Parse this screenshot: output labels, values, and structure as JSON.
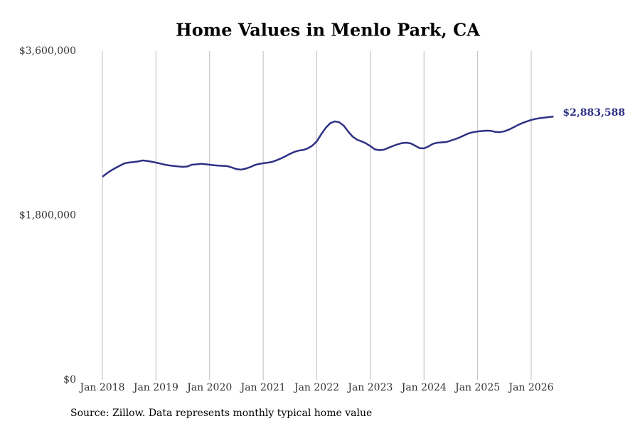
{
  "chart_data": {
    "type": "line",
    "title": "Home Values in Menlo Park, CA",
    "source": "Source: Zillow. Data represents monthly typical home value",
    "categories": [
      "Jan 2018",
      null,
      null,
      null,
      null,
      null,
      null,
      null,
      null,
      null,
      null,
      null,
      "Jan 2019",
      null,
      null,
      null,
      null,
      null,
      null,
      null,
      null,
      null,
      null,
      null,
      "Jan 2020",
      null,
      null,
      null,
      null,
      null,
      null,
      null,
      null,
      null,
      null,
      null,
      "Jan 2021",
      null,
      null,
      null,
      null,
      null,
      null,
      null,
      null,
      null,
      null,
      null,
      "Jan 2022",
      null,
      null,
      null,
      null,
      null,
      null,
      null,
      null,
      null,
      null,
      null,
      "Jan 2023",
      null,
      null,
      null,
      null,
      null,
      null,
      null,
      null,
      null,
      null,
      null,
      "Jan 2024",
      null,
      null,
      null,
      null,
      null,
      null,
      null,
      null,
      null,
      null,
      null,
      "Jan 2025",
      null,
      null,
      null,
      null,
      null,
      null,
      null,
      null,
      null,
      null,
      null,
      "Jan 2026",
      null,
      null,
      null,
      null,
      null
    ],
    "series": [
      {
        "name": "Home Values",
        "color": "#2e3184",
        "values": [
          2224000,
          2262000,
          2294000,
          2322000,
          2348000,
          2372000,
          2380000,
          2385000,
          2392000,
          2403000,
          2398000,
          2389000,
          2379000,
          2368000,
          2356000,
          2348000,
          2342000,
          2337000,
          2333000,
          2336000,
          2356000,
          2360000,
          2366000,
          2362000,
          2356000,
          2350000,
          2346000,
          2343000,
          2340000,
          2325000,
          2308000,
          2302000,
          2312000,
          2328000,
          2350000,
          2364000,
          2372000,
          2378000,
          2387000,
          2405000,
          2425000,
          2449000,
          2475000,
          2497000,
          2511000,
          2518000,
          2535000,
          2565000,
          2613000,
          2690000,
          2760000,
          2810000,
          2830000,
          2822000,
          2785000,
          2721000,
          2665000,
          2630000,
          2612000,
          2590000,
          2560000,
          2524000,
          2515000,
          2520000,
          2540000,
          2560000,
          2578000,
          2592000,
          2597000,
          2590000,
          2565000,
          2538000,
          2535000,
          2556000,
          2585000,
          2597000,
          2601000,
          2605000,
          2620000,
          2636000,
          2655000,
          2678000,
          2700000,
          2712000,
          2720000,
          2725000,
          2729000,
          2727000,
          2715000,
          2713000,
          2722000,
          2740000,
          2764000,
          2790000,
          2812000,
          2830000,
          2846000,
          2858000,
          2866000,
          2872000,
          2878000,
          2883588
        ],
        "value_labels": [
          null,
          null,
          null,
          null,
          null,
          null,
          null,
          null,
          null,
          null,
          null,
          null,
          null,
          null,
          null,
          null,
          null,
          null,
          null,
          null,
          null,
          null,
          null,
          null,
          null,
          null,
          null,
          null,
          null,
          null,
          null,
          null,
          null,
          null,
          null,
          null,
          null,
          null,
          null,
          null,
          null,
          null,
          null,
          null,
          null,
          null,
          null,
          null,
          null,
          null,
          null,
          null,
          null,
          null,
          null,
          null,
          null,
          null,
          null,
          null,
          null,
          null,
          null,
          null,
          null,
          null,
          null,
          null,
          null,
          null,
          null,
          null,
          null,
          null,
          null,
          null,
          null,
          null,
          null,
          null,
          null,
          null,
          null,
          null,
          null,
          null,
          null,
          null,
          null,
          null,
          null,
          null,
          null,
          null,
          null,
          null,
          null,
          null,
          null,
          null,
          null,
          "$2,883,588"
        ]
      }
    ],
    "ylim": [
      0,
      3600000
    ],
    "yticks": [
      {
        "value": 0,
        "label": "$0"
      },
      {
        "value": 1800000,
        "label": "$1,800,000"
      },
      {
        "value": 3600000,
        "label": "$3,600,000"
      }
    ],
    "grid": "x"
  }
}
